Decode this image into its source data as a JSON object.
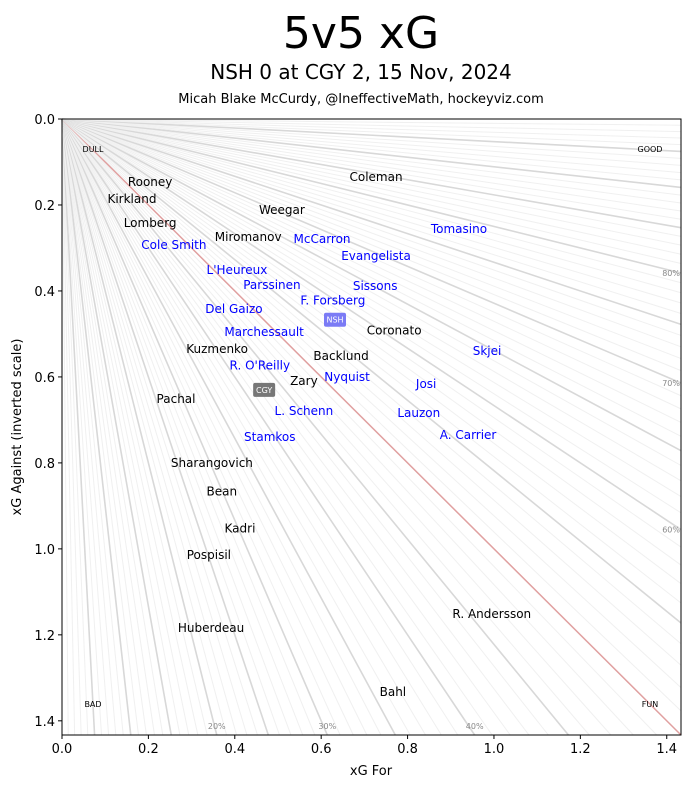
{
  "chart_data": {
    "type": "scatter",
    "title": "5v5 xG",
    "subtitle": "NSH 0 at CGY 2, 15 Nov, 2024",
    "credit": "Micah Blake McCurdy, @IneffectiveMath, hockeyviz.com",
    "xlabel": "xG For",
    "ylabel": "xG Against (inverted scale)",
    "xlim": [
      0,
      1.433
    ],
    "ylim": [
      1.433,
      0
    ],
    "y_inverted": true,
    "xticks": [
      "0.0",
      "0.2",
      "0.4",
      "0.6",
      "0.8",
      "1.0",
      "1.2",
      "1.4"
    ],
    "yticks": [
      "0.0",
      "0.2",
      "0.4",
      "0.6",
      "0.8",
      "1.0",
      "1.2",
      "1.4"
    ],
    "corner_labels": {
      "top_left": "DULL",
      "top_right": "GOOD",
      "bottom_left": "BAD",
      "bottom_right": "FUN"
    },
    "share_labels_bottom": [
      "20%",
      "30%",
      "40%"
    ],
    "share_labels_right": [
      "60%",
      "70%",
      "80%"
    ],
    "colors": {
      "CGY": "#000000",
      "NSH": "#0000ff",
      "nsh_box": "#7b7bf5",
      "cgy_box": "#777777",
      "diagonal": "#e0a0a0"
    },
    "teams": [
      {
        "name": "NSH",
        "x": 0.632,
        "y": 0.467
      },
      {
        "name": "CGY",
        "x": 0.468,
        "y": 0.63
      }
    ],
    "series": [
      {
        "name": "CGY",
        "points": [
          {
            "label": "Coleman",
            "x": 0.727,
            "y": 0.135
          },
          {
            "label": "Rooney",
            "x": 0.204,
            "y": 0.147
          },
          {
            "label": "Kirkland",
            "x": 0.162,
            "y": 0.156
          },
          {
            "label": "Lomberg",
            "x": 0.204,
            "y": 0.181
          },
          {
            "label": "Miromanov",
            "x": 0.431,
            "y": 0.274
          },
          {
            "label": "Weegar",
            "x": 0.509,
            "y": 0.272
          },
          {
            "label": "Kuzmenko",
            "x": 0.359,
            "y": 0.535
          },
          {
            "label": "Backlund",
            "x": 0.646,
            "y": 0.551
          },
          {
            "label": "Coronato",
            "x": 0.769,
            "y": 0.553
          },
          {
            "label": "Zary",
            "x": 0.56,
            "y": 0.609
          },
          {
            "label": "Pachal",
            "x": 0.264,
            "y": 0.651
          },
          {
            "label": "Sharangovich",
            "x": 0.347,
            "y": 0.8
          },
          {
            "label": "Bean",
            "x": 0.37,
            "y": 0.867
          },
          {
            "label": "Kadri",
            "x": 0.412,
            "y": 0.953
          },
          {
            "label": "Pospisil",
            "x": 0.34,
            "y": 1.014
          },
          {
            "label": "Huberdeau",
            "x": 0.345,
            "y": 1.184
          },
          {
            "label": "R. Andersson",
            "x": 0.995,
            "y": 1.151
          },
          {
            "label": "Bahl",
            "x": 0.766,
            "y": 1.333
          }
        ]
      },
      {
        "name": "NSH",
        "points": [
          {
            "label": "Tomasino",
            "x": 0.919,
            "y": 0.256
          },
          {
            "label": "Cole Smith",
            "x": 0.259,
            "y": 0.293
          },
          {
            "label": "L'Heureux",
            "x": 0.405,
            "y": 0.291
          },
          {
            "label": "McCarron",
            "x": 0.602,
            "y": 0.279
          },
          {
            "label": "Evangelista",
            "x": 0.727,
            "y": 0.288
          },
          {
            "label": "Parssinen",
            "x": 0.486,
            "y": 0.386
          },
          {
            "label": "Sissons",
            "x": 0.725,
            "y": 0.388
          },
          {
            "label": "Del Gaizo",
            "x": 0.398,
            "y": 0.442
          },
          {
            "label": "Nyquist",
            "x": 0.66,
            "y": 0.449
          },
          {
            "label": "Marchessault",
            "x": 0.468,
            "y": 0.495
          },
          {
            "label": "L. Schenn",
            "x": 0.56,
            "y": 0.528
          },
          {
            "label": "R. O'Reilly",
            "x": 0.458,
            "y": 0.574
          },
          {
            "label": "F. Forsberg",
            "x": 0.627,
            "y": 0.574
          },
          {
            "label": "Skjei",
            "x": 0.984,
            "y": 0.54
          },
          {
            "label": "Josi",
            "x": 0.843,
            "y": 0.616
          },
          {
            "label": "Stamkos",
            "x": 0.481,
            "y": 0.649
          },
          {
            "label": "Lauzon",
            "x": 0.826,
            "y": 0.684
          },
          {
            "label": "A. Carrier",
            "x": 0.94,
            "y": 0.705
          }
        ]
      }
    ]
  }
}
